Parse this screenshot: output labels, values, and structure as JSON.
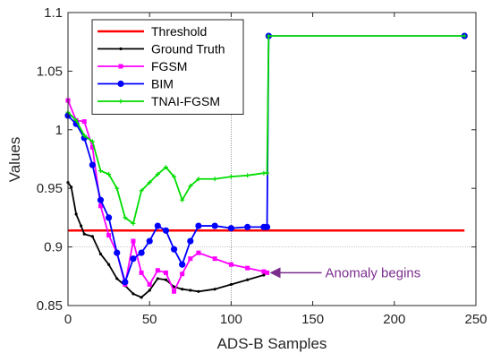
{
  "chart_data": {
    "type": "line",
    "title": "",
    "xlabel": "ADS-B Samples",
    "ylabel": "Values",
    "xlim": [
      0,
      250
    ],
    "ylim": [
      0.85,
      1.1
    ],
    "xticks": [
      "0",
      "50",
      "100",
      "150",
      "200",
      "250"
    ],
    "yticks": [
      "0.85",
      "0.9",
      "0.95",
      "1",
      "1.05",
      "1.1"
    ],
    "grid": "partial: dotted vertical line at x=100 and dotted horizontal line at y=0.9",
    "legend": "top-left",
    "series": [
      {
        "name": "Threshold",
        "color": "#ff0000",
        "marker": "none",
        "x": [
          0,
          243
        ],
        "y": [
          0.914,
          0.914
        ]
      },
      {
        "name": "Ground Truth",
        "color": "#000000",
        "marker": "dot",
        "x": [
          0,
          2,
          5,
          8,
          10,
          15,
          20,
          25,
          30,
          35,
          40,
          45,
          50,
          55,
          60,
          65,
          70,
          75,
          80,
          90,
          100,
          110,
          120,
          122
        ],
        "y": [
          0.955,
          0.951,
          0.928,
          0.918,
          0.911,
          0.909,
          0.894,
          0.885,
          0.873,
          0.867,
          0.86,
          0.857,
          0.863,
          0.873,
          0.872,
          0.866,
          0.864,
          0.863,
          0.862,
          0.864,
          0.868,
          0.872,
          0.876,
          0.878
        ]
      },
      {
        "name": "FGSM",
        "color": "#ff00ff",
        "marker": "square",
        "x": [
          0,
          5,
          10,
          15,
          20,
          25,
          30,
          35,
          40,
          45,
          50,
          55,
          60,
          65,
          70,
          75,
          80,
          90,
          100,
          110,
          120,
          122
        ],
        "y": [
          1.025,
          1.008,
          1.007,
          0.985,
          0.935,
          0.91,
          0.895,
          0.868,
          0.905,
          0.878,
          0.868,
          0.88,
          0.878,
          0.862,
          0.877,
          0.89,
          0.895,
          0.89,
          0.885,
          0.882,
          0.879,
          0.878
        ]
      },
      {
        "name": "BIM",
        "color": "#0000ff",
        "marker": "circle",
        "x": [
          0,
          5,
          10,
          15,
          20,
          25,
          30,
          35,
          40,
          45,
          50,
          55,
          60,
          65,
          70,
          75,
          80,
          90,
          100,
          110,
          120,
          122,
          123,
          243
        ],
        "y": [
          1.012,
          1.005,
          0.993,
          0.97,
          0.94,
          0.925,
          0.895,
          0.87,
          0.89,
          0.895,
          0.905,
          0.918,
          0.914,
          0.898,
          0.885,
          0.905,
          0.918,
          0.918,
          0.916,
          0.917,
          0.917,
          0.917,
          1.08,
          1.08
        ]
      },
      {
        "name": "TNAI-FGSM",
        "color": "#00dd00",
        "marker": "plus",
        "x": [
          0,
          5,
          10,
          15,
          20,
          25,
          30,
          35,
          40,
          45,
          50,
          55,
          60,
          65,
          70,
          75,
          80,
          90,
          100,
          110,
          120,
          122,
          123,
          243
        ],
        "y": [
          1.015,
          1.008,
          0.995,
          0.99,
          0.965,
          0.962,
          0.95,
          0.925,
          0.92,
          0.948,
          0.955,
          0.962,
          0.968,
          0.96,
          0.94,
          0.952,
          0.958,
          0.958,
          0.96,
          0.961,
          0.963,
          0.963,
          1.08,
          1.08
        ]
      }
    ],
    "annotations": [
      {
        "text": "Anomaly begins",
        "color": "#7b2d8e",
        "arrow_to": [
          122,
          0.878
        ]
      }
    ]
  }
}
